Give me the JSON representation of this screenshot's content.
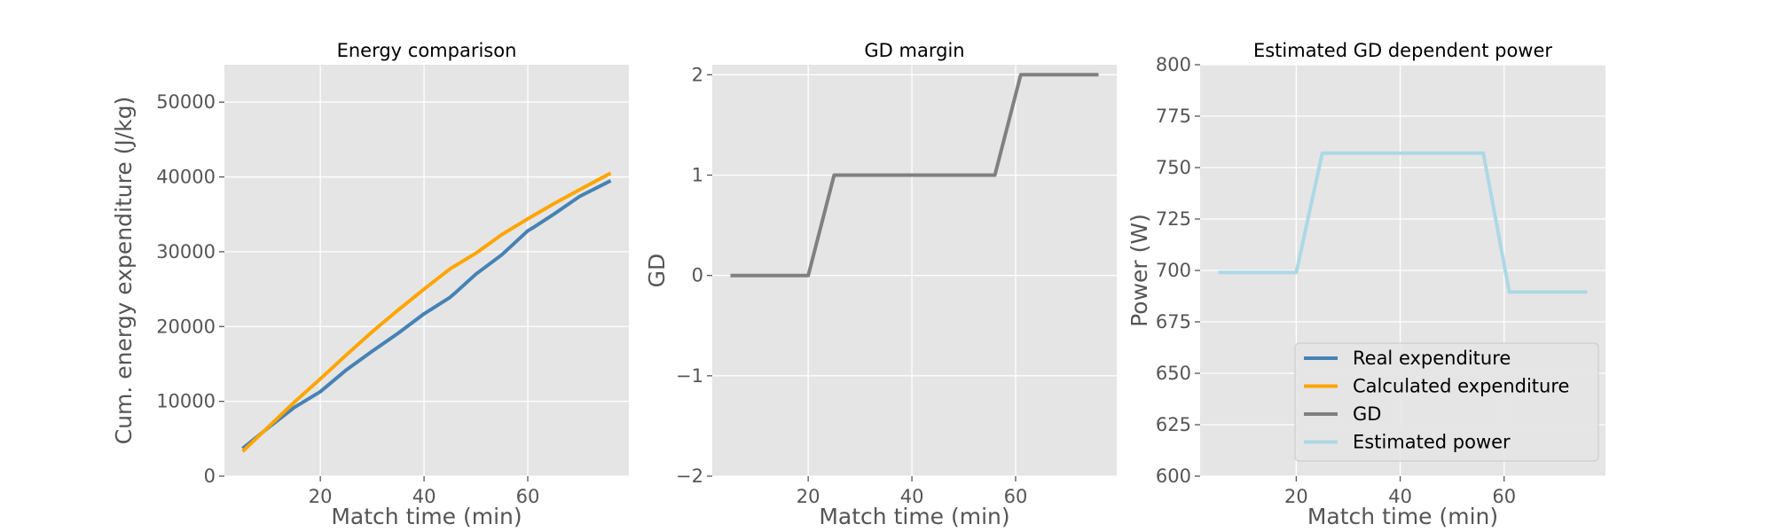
{
  "chart_data": [
    {
      "type": "line",
      "title": "Energy comparison",
      "xlabel": "Match time (min)",
      "ylabel": "Cum. energy expenditure (J/kg)",
      "xlim": [
        1.5,
        79.5
      ],
      "ylim": [
        0,
        55000
      ],
      "xticks": [
        20,
        40,
        60
      ],
      "yticks": [
        0,
        10000,
        20000,
        30000,
        40000,
        50000
      ],
      "grid": true,
      "series": [
        {
          "name": "Real expenditure",
          "color": "#4682b4",
          "x": [
            5,
            10,
            15,
            20,
            25,
            30,
            35,
            40,
            45,
            46,
            50,
            55,
            60,
            61,
            65,
            70,
            76
          ],
          "y": [
            3700,
            6500,
            9200,
            11300,
            14200,
            16700,
            19100,
            21700,
            23900,
            24500,
            27000,
            29600,
            32800,
            33200,
            35000,
            37400,
            39500
          ]
        },
        {
          "name": "Calculated expenditure",
          "color": "#ffa500",
          "x": [
            5,
            10,
            15,
            20,
            25,
            30,
            35,
            40,
            45,
            50,
            55,
            60,
            65,
            70,
            76
          ],
          "y": [
            3300,
            6600,
            9900,
            13000,
            16200,
            19300,
            22200,
            25000,
            27700,
            29800,
            32300,
            34400,
            36400,
            38300,
            40500
          ]
        }
      ]
    },
    {
      "type": "line",
      "title": "GD margin",
      "xlabel": "Match time (min)",
      "ylabel": "GD",
      "xlim": [
        1.5,
        79.5
      ],
      "ylim": [
        -2,
        2.1
      ],
      "xticks": [
        20,
        40,
        60
      ],
      "yticks": [
        -2,
        -1,
        0,
        1,
        2
      ],
      "ytick_labels": [
        "−2",
        "−1",
        "0",
        "1",
        "2"
      ],
      "grid": true,
      "series": [
        {
          "name": "GD",
          "color": "#808080",
          "x": [
            5,
            20,
            25,
            56,
            61,
            76
          ],
          "y": [
            0,
            0,
            1,
            1,
            2,
            2
          ]
        }
      ]
    },
    {
      "type": "line",
      "title": "Estimated GD dependent power",
      "xlabel": "Match time (min)",
      "ylabel": "Power (W)",
      "xlim": [
        1.5,
        79.5
      ],
      "ylim": [
        600,
        800
      ],
      "xticks": [
        20,
        40,
        60
      ],
      "yticks": [
        600,
        625,
        650,
        675,
        700,
        725,
        750,
        775,
        800
      ],
      "grid": true,
      "legend_position": "lower-right",
      "series": [
        {
          "name": "Estimated power",
          "color": "#add8e6",
          "x": [
            5,
            20,
            25,
            56,
            61,
            76
          ],
          "y": [
            699,
            699,
            757,
            757,
            689.5,
            689.5
          ]
        }
      ]
    }
  ],
  "legend": {
    "entries": [
      {
        "label": "Real expenditure",
        "color": "#4682b4"
      },
      {
        "label": "Calculated expenditure",
        "color": "#ffa500"
      },
      {
        "label": "GD",
        "color": "#808080"
      },
      {
        "label": "Estimated power",
        "color": "#add8e6"
      }
    ]
  }
}
